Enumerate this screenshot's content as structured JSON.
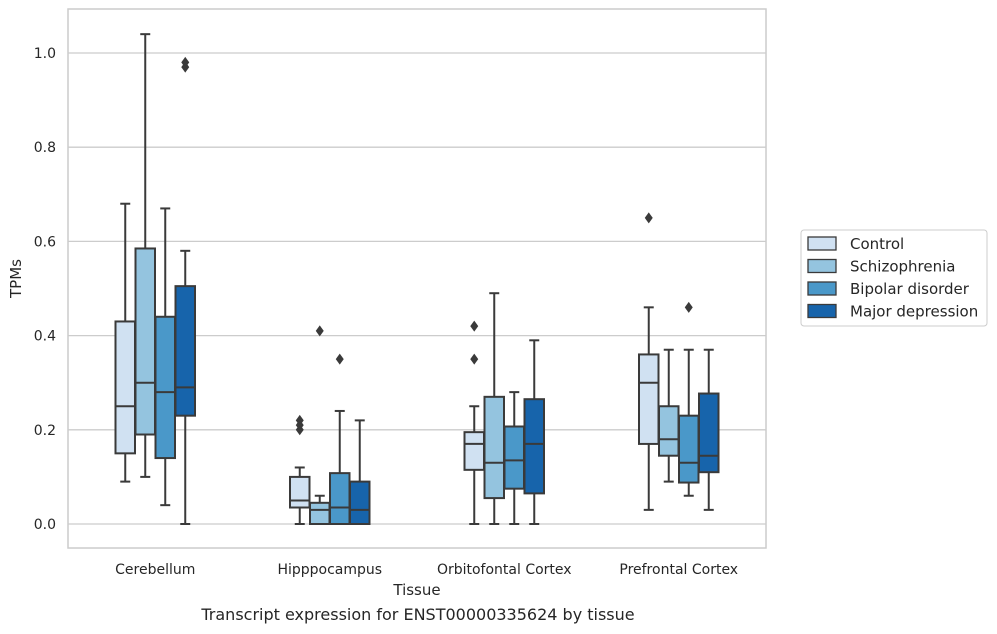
{
  "caption": "Transcript expression for ENST00000335624 by tissue",
  "colors": {
    "background": "#ffffff",
    "grid": "#cccccc",
    "frame": "#cccccc",
    "box_edge": "#3a3a3a",
    "series": [
      "#d0e1f2",
      "#94c4df",
      "#4a98c9",
      "#1764ab"
    ]
  },
  "chart_data": {
    "type": "box",
    "title": "",
    "xlabel": "Tissue",
    "ylabel": "TPMs",
    "ylim": [
      -0.05,
      1.09
    ],
    "yticks": [
      0.0,
      0.2,
      0.4,
      0.6,
      0.8,
      1.0
    ],
    "ytick_labels": [
      "0.0",
      "0.2",
      "0.4",
      "0.6",
      "0.8",
      "1.0"
    ],
    "grid": "horizontal",
    "legend_position": "right",
    "categories": [
      "Cerebellum",
      "Hipppocampus",
      "Orbitofontal Cortex",
      "Prefrontal Cortex"
    ],
    "series": [
      {
        "name": "Control",
        "boxes": [
          {
            "whisker_low": 0.09,
            "q1": 0.15,
            "median": 0.25,
            "q3": 0.43,
            "whisker_high": 0.68,
            "outliers": []
          },
          {
            "whisker_low": 0.0,
            "q1": 0.035,
            "median": 0.05,
            "q3": 0.1,
            "whisker_high": 0.12,
            "outliers": [
              0.2,
              0.21,
              0.22
            ]
          },
          {
            "whisker_low": 0.0,
            "q1": 0.115,
            "median": 0.17,
            "q3": 0.195,
            "whisker_high": 0.25,
            "outliers": [
              0.35,
              0.42
            ]
          },
          {
            "whisker_low": 0.03,
            "q1": 0.17,
            "median": 0.3,
            "q3": 0.36,
            "whisker_high": 0.46,
            "outliers": [
              0.65
            ]
          }
        ]
      },
      {
        "name": "Schizophrenia",
        "boxes": [
          {
            "whisker_low": 0.1,
            "q1": 0.19,
            "median": 0.3,
            "q3": 0.585,
            "whisker_high": 1.04,
            "outliers": []
          },
          {
            "whisker_low": 0.0,
            "q1": 0.0,
            "median": 0.03,
            "q3": 0.045,
            "whisker_high": 0.06,
            "outliers": [
              0.41
            ]
          },
          {
            "whisker_low": 0.0,
            "q1": 0.055,
            "median": 0.13,
            "q3": 0.27,
            "whisker_high": 0.49,
            "outliers": []
          },
          {
            "whisker_low": 0.09,
            "q1": 0.145,
            "median": 0.18,
            "q3": 0.25,
            "whisker_high": 0.37,
            "outliers": []
          }
        ]
      },
      {
        "name": "Bipolar disorder",
        "boxes": [
          {
            "whisker_low": 0.04,
            "q1": 0.14,
            "median": 0.28,
            "q3": 0.44,
            "whisker_high": 0.67,
            "outliers": []
          },
          {
            "whisker_low": 0.0,
            "q1": 0.0,
            "median": 0.035,
            "q3": 0.108,
            "whisker_high": 0.24,
            "outliers": [
              0.35
            ]
          },
          {
            "whisker_low": 0.0,
            "q1": 0.075,
            "median": 0.135,
            "q3": 0.207,
            "whisker_high": 0.28,
            "outliers": []
          },
          {
            "whisker_low": 0.06,
            "q1": 0.088,
            "median": 0.13,
            "q3": 0.23,
            "whisker_high": 0.37,
            "outliers": [
              0.46
            ]
          }
        ]
      },
      {
        "name": "Major depression",
        "boxes": [
          {
            "whisker_low": 0.0,
            "q1": 0.23,
            "median": 0.29,
            "q3": 0.505,
            "whisker_high": 0.58,
            "outliers": [
              0.97,
              0.98
            ]
          },
          {
            "whisker_low": 0.0,
            "q1": 0.0,
            "median": 0.03,
            "q3": 0.09,
            "whisker_high": 0.22,
            "outliers": []
          },
          {
            "whisker_low": 0.0,
            "q1": 0.065,
            "median": 0.17,
            "q3": 0.265,
            "whisker_high": 0.39,
            "outliers": []
          },
          {
            "whisker_low": 0.03,
            "q1": 0.11,
            "median": 0.145,
            "q3": 0.277,
            "whisker_high": 0.37,
            "outliers": []
          }
        ]
      }
    ]
  }
}
